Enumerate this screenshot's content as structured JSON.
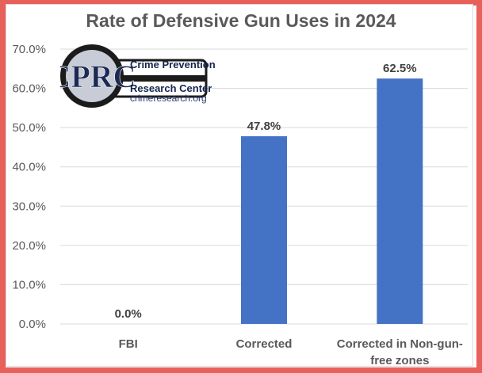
{
  "chart_data": {
    "type": "bar",
    "title": "Rate of Defensive Gun Uses in 2024",
    "categories": [
      "FBI",
      "Corrected",
      "Corrected in Non-gun-free zones"
    ],
    "category_lines": [
      [
        "FBI"
      ],
      [
        "Corrected"
      ],
      [
        "Corrected in Non-gun-",
        "free zones"
      ]
    ],
    "values": [
      0.0,
      47.8,
      62.5
    ],
    "data_labels": [
      "0.0%",
      "47.8%",
      "62.5%"
    ],
    "y_ticks": [
      "0.0%",
      "10.0%",
      "20.0%",
      "30.0%",
      "40.0%",
      "50.0%",
      "60.0%",
      "70.0%"
    ],
    "ylim": [
      0,
      70
    ],
    "xlabel": "",
    "ylabel": "",
    "grid": true,
    "bar_color": "#4472c4"
  },
  "logo": {
    "mark": "CPRC",
    "line1": "Crime Prevention",
    "line2": "Research Center",
    "line3": "crimeresearch.org"
  },
  "colors": {
    "frame": "#e8605a",
    "grid": "#d9d9d9",
    "text": "#595959"
  }
}
